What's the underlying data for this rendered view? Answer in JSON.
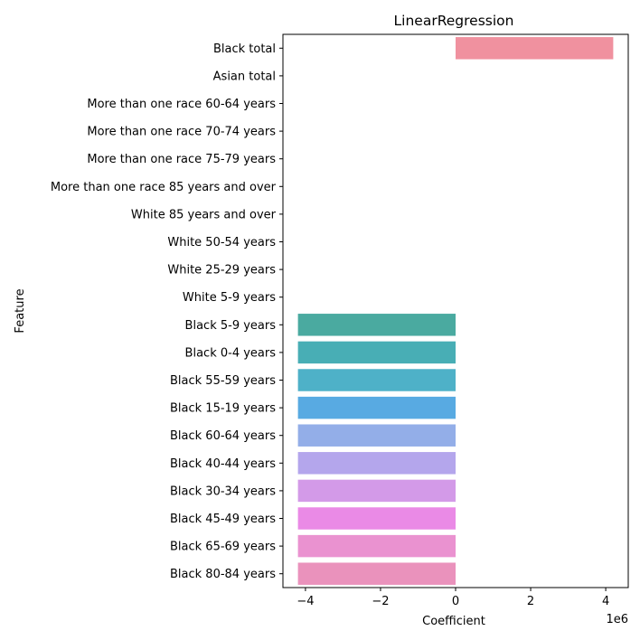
{
  "chart_data": {
    "type": "bar",
    "orientation": "horizontal",
    "title": "LinearRegression",
    "xlabel": "Coefficient",
    "ylabel": "Feature",
    "x_offset_label": "1e6",
    "x_scale_factor": 1000000,
    "xlim": [
      -4.6,
      4.6
    ],
    "x_ticks": [
      -4,
      -2,
      0,
      2,
      4
    ],
    "x_tick_labels": [
      "−4",
      "−2",
      "0",
      "2",
      "4"
    ],
    "grid": false,
    "categories": [
      "Black total",
      "Asian total",
      "More than one race 60-64 years",
      "More than one race 70-74 years",
      "More than one race 75-79 years",
      "More than one race 85 years and over",
      "White 85 years and over",
      "White 50-54 years",
      "White 25-29 years",
      "White 5-9 years",
      "Black 5-9 years",
      "Black 0-4 years",
      "Black 55-59 years",
      "Black 15-19 years",
      "Black 60-64 years",
      "Black 40-44 years",
      "Black 30-34 years",
      "Black 45-49 years",
      "Black 65-69 years",
      "Black 80-84 years"
    ],
    "values": [
      4.2,
      0,
      0,
      0,
      0,
      0,
      0,
      0,
      0,
      0,
      -4.2,
      -4.2,
      -4.2,
      -4.2,
      -4.2,
      -4.2,
      -4.2,
      -4.2,
      -4.2,
      -4.2
    ],
    "colors": [
      "#f0919f",
      "#f09d6e",
      "#e0a95a",
      "#c8b45a",
      "#b3bb5a",
      "#9cc05a",
      "#6cc46a",
      "#5cc48f",
      "#58c3a8",
      "#55c2b8",
      "#4aaaa0",
      "#48aeb5",
      "#4eb1c8",
      "#58aae2",
      "#93aee8",
      "#b4a6ec",
      "#d39ae8",
      "#ea8ae6",
      "#ea92d0",
      "#ea92bc"
    ]
  }
}
